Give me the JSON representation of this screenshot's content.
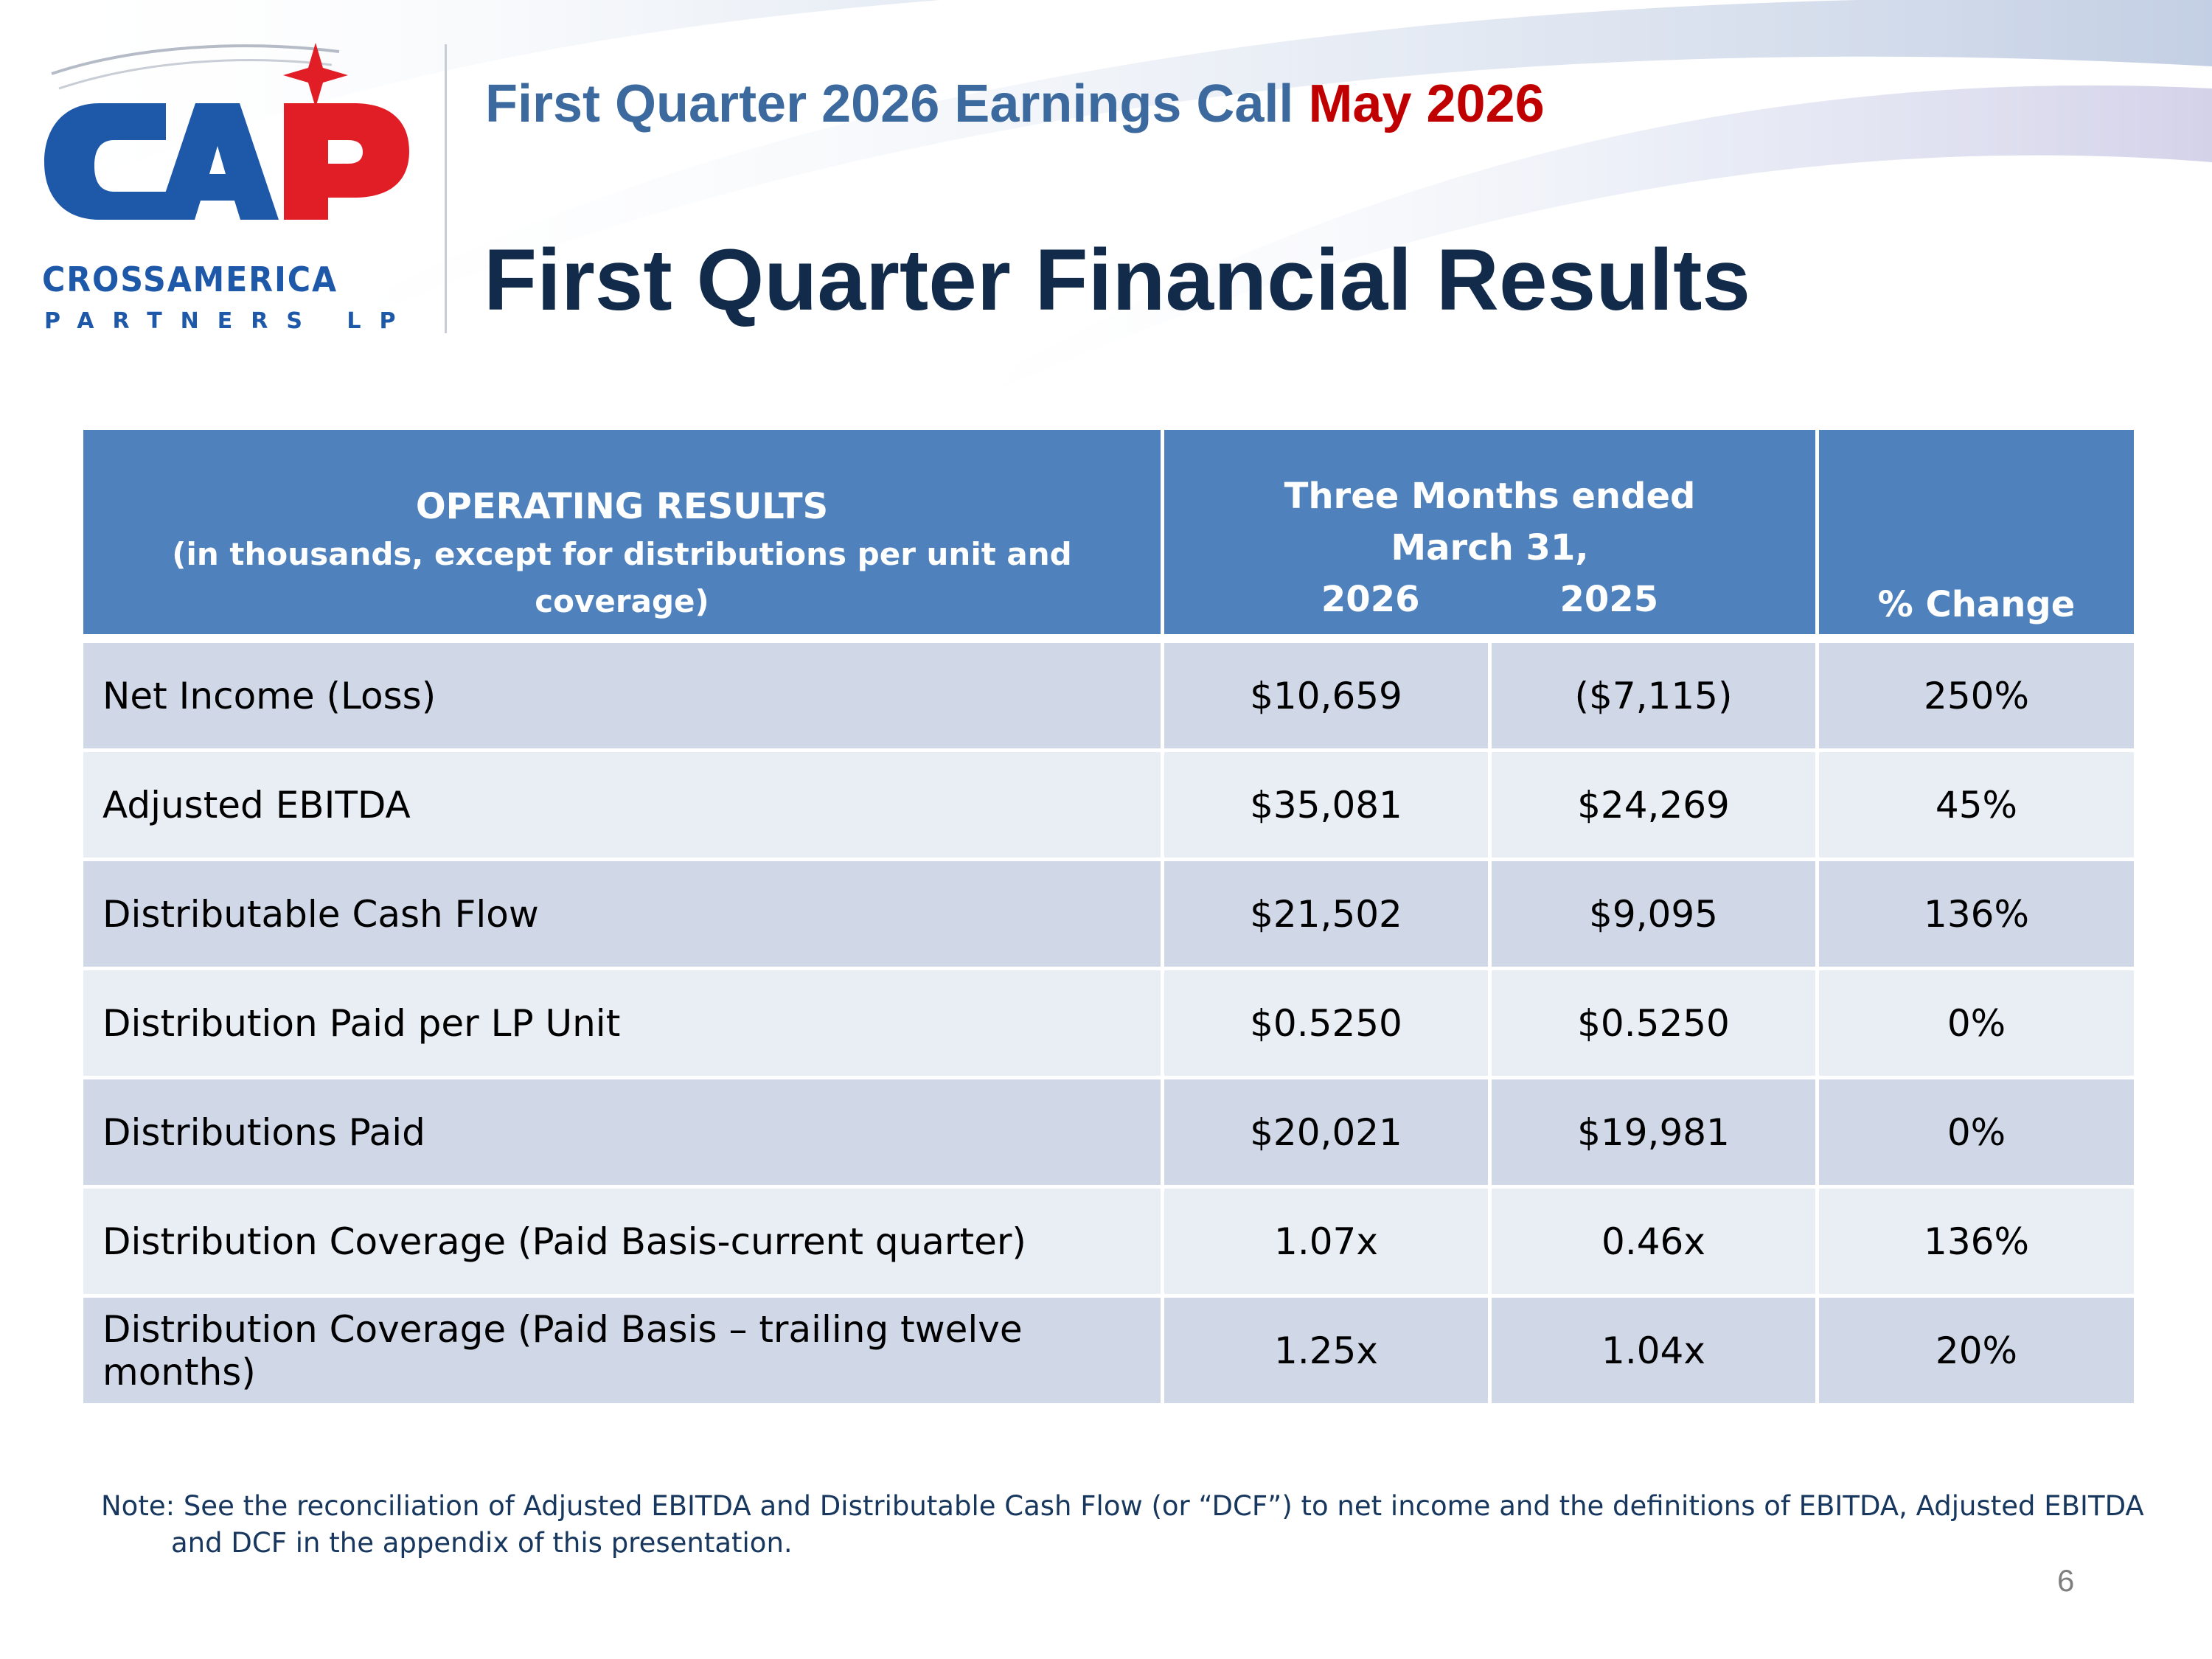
{
  "header": {
    "event_text": "First Quarter 2026 Earnings Call",
    "event_date": "May 2026",
    "title": "First Quarter Financial Results"
  },
  "logo": {
    "name": "CROSSAMERICA",
    "sub": "PARTNERS LP",
    "colors": {
      "blue": "#1e58a8",
      "red": "#e11e26"
    }
  },
  "table": {
    "header": {
      "op_title": "OPERATING RESULTS",
      "op_sub": "(in thousands, except for distributions per unit and coverage)",
      "period_line1": "Three Months ended",
      "period_line2": "March 31,",
      "year1": "2026",
      "year2": "2025",
      "change": "% Change"
    },
    "rows": [
      {
        "label": "Net Income (Loss)",
        "y2026": "$10,659",
        "y2025": "($7,115)",
        "change": "250%"
      },
      {
        "label": "Adjusted EBITDA",
        "y2026": "$35,081",
        "y2025": "$24,269",
        "change": "45%"
      },
      {
        "label": "Distributable Cash Flow",
        "y2026": "$21,502",
        "y2025": "$9,095",
        "change": "136%"
      },
      {
        "label": "Distribution Paid per LP Unit",
        "y2026": "$0.5250",
        "y2025": "$0.5250",
        "change": "0%"
      },
      {
        "label": "Distributions Paid",
        "y2026": "$20,021",
        "y2025": "$19,981",
        "change": "0%"
      },
      {
        "label": "Distribution Coverage (Paid Basis-current quarter)",
        "y2026": "1.07x",
        "y2025": "0.46x",
        "change": "136%"
      },
      {
        "label": "Distribution Coverage (Paid Basis – trailing twelve months)",
        "y2026": "1.25x",
        "y2025": "1.04x",
        "change": "20%"
      }
    ]
  },
  "note": "Note: See the reconciliation of Adjusted EBITDA and Distributable Cash Flow (or “DCF”) to net income and the definitions of EBITDA, Adjusted EBITDA and DCF in the appendix of this presentation.",
  "page_number": "6",
  "colors": {
    "header_blue": "#4f81bd",
    "row_dark": "#d0d8e8",
    "row_light": "#e9edf4",
    "title_navy": "#122b4b",
    "event_blue": "#3c6a9f",
    "event_red": "#c00000"
  }
}
